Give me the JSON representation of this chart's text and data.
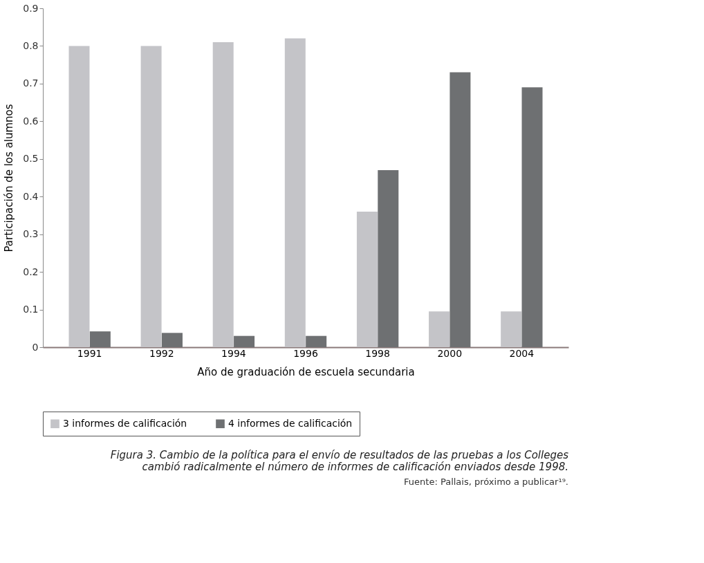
{
  "chart_data": {
    "type": "bar",
    "xlabel": "Año de graduación de escuela secundaria",
    "ylabel": "Participación de los alumnos",
    "categories": [
      "1991",
      "1992",
      "1994",
      "1996",
      "1998",
      "2000",
      "2004"
    ],
    "series": [
      {
        "name": "3 informes de calificación",
        "color": "#c4c4c8",
        "values": [
          0.8,
          0.8,
          0.81,
          0.82,
          0.36,
          0.095,
          0.095
        ]
      },
      {
        "name": "4 informes de calificación",
        "color": "#6e7072",
        "values": [
          0.042,
          0.038,
          0.03,
          0.03,
          0.47,
          0.73,
          0.69
        ]
      }
    ],
    "ylim": [
      0,
      0.9
    ],
    "yticks": [
      0,
      0.1,
      0.2,
      0.3,
      0.4,
      0.5,
      0.6,
      0.7,
      0.8,
      0.9
    ],
    "grid": false,
    "legend": "bottom",
    "annotations": [
      "Fuente: Pallais, próximo a publicar¹⁹.",
      "Figura 3. Cambio de la política para el envío de resultados de las pruebas a los Colleges cambió radicalmente el número de informes de calificación enviados desde 1998."
    ]
  }
}
